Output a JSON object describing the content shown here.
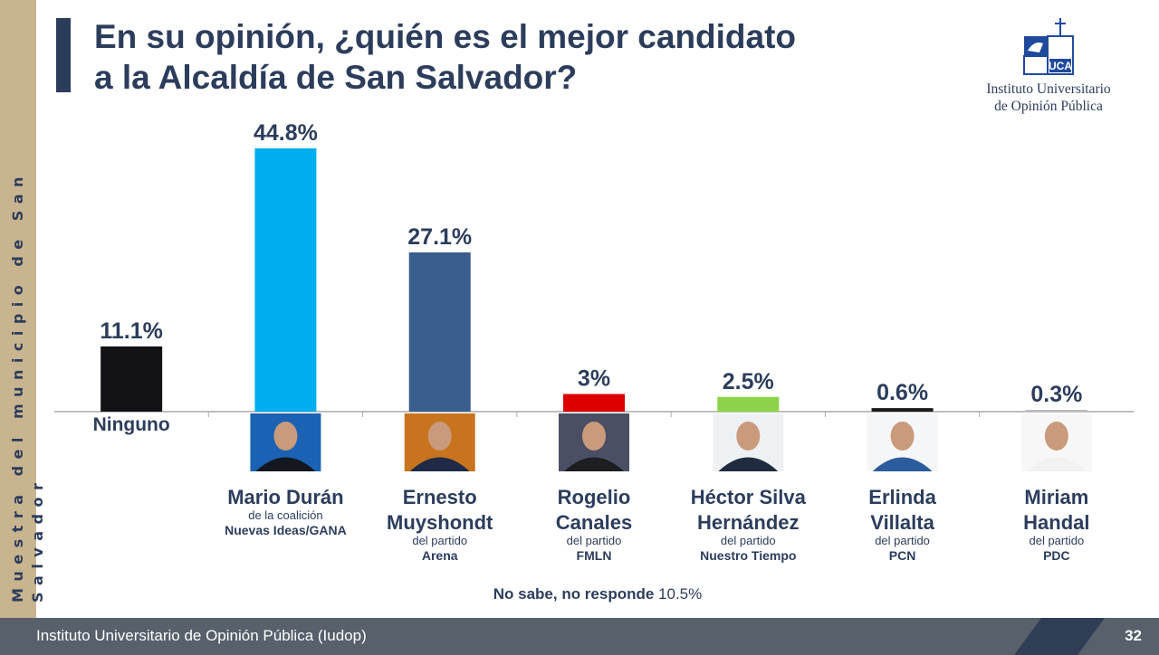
{
  "title": {
    "line1": "En su opinión, ¿quién es el mejor candidato",
    "line2": "a la Alcaldía de San Salvador?"
  },
  "logo": {
    "icon": "uca-logo-icon",
    "mark_text": "UCA",
    "line1": "Instituto Universitario",
    "line2": "de Opinión Pública"
  },
  "sidebar": {
    "text": "Muestra del municipio de San Salvador",
    "color": "#c8b48e"
  },
  "footer": {
    "text": "Instituto Universitario de Opinión Pública (Iudop)",
    "page_number": "32"
  },
  "colors": {
    "navy": "#2c3d5c",
    "footer": "#57606b",
    "axis": "#a9a9a9"
  },
  "chart_data": {
    "type": "bar",
    "ylim": [
      0,
      50
    ],
    "grid": false,
    "categories": [
      "Ninguno",
      "Mario Durán",
      "Ernesto Muyshondt",
      "Rogelio Canales",
      "Héctor Silva Hernández",
      "Erlinda Villalta",
      "Miriam Handal"
    ],
    "values": [
      11.1,
      44.8,
      27.1,
      3,
      2.5,
      0.6,
      0.3
    ],
    "value_labels": [
      "11.1%",
      "44.8%",
      "27.1%",
      "3%",
      "2.5%",
      "0.6%",
      "0.3%"
    ],
    "bar_colors": [
      "#131317",
      "#00adee",
      "#3a5f8e",
      "#dd0000",
      "#8cd34a",
      "#1a1a1a",
      "#bcbcbc"
    ],
    "candidates": [
      {
        "name_lines": [
          "Ninguno"
        ],
        "photo": false
      },
      {
        "name_lines": [
          "Mario Durán"
        ],
        "party_prefix": "de la coalición",
        "party": "Nuevas Ideas/GANA",
        "photo": true,
        "photo_bg": "#1b62b4",
        "suit": "#14171d"
      },
      {
        "name_lines": [
          "Ernesto",
          "Muyshondt"
        ],
        "party_prefix": "del partido",
        "party": "Arena",
        "photo": true,
        "photo_bg": "#c8731e",
        "suit": "#1e2a48"
      },
      {
        "name_lines": [
          "Rogelio",
          "Canales"
        ],
        "party_prefix": "del partido",
        "party": "FMLN",
        "photo": true,
        "photo_bg": "#4b4f63",
        "suit": "#1d1d22"
      },
      {
        "name_lines": [
          "Héctor Silva",
          "Hernández"
        ],
        "party_prefix": "del partido",
        "party": "Nuestro Tiempo",
        "photo": true,
        "photo_bg": "#eef1f4",
        "suit": "#1f2c3f"
      },
      {
        "name_lines": [
          "Erlinda",
          "Villalta"
        ],
        "party_prefix": "del partido",
        "party": "PCN",
        "photo": true,
        "photo_bg": "#f5f6f8",
        "suit": "#2c5c9c"
      },
      {
        "name_lines": [
          "Miriam",
          "Handal"
        ],
        "party_prefix": "del partido",
        "party": "PDC",
        "photo": true,
        "photo_bg": "#f7f7f7",
        "suit": "#f2f2f2"
      }
    ],
    "footnote": {
      "label": "No sabe, no responde",
      "value": "10.5%"
    }
  }
}
